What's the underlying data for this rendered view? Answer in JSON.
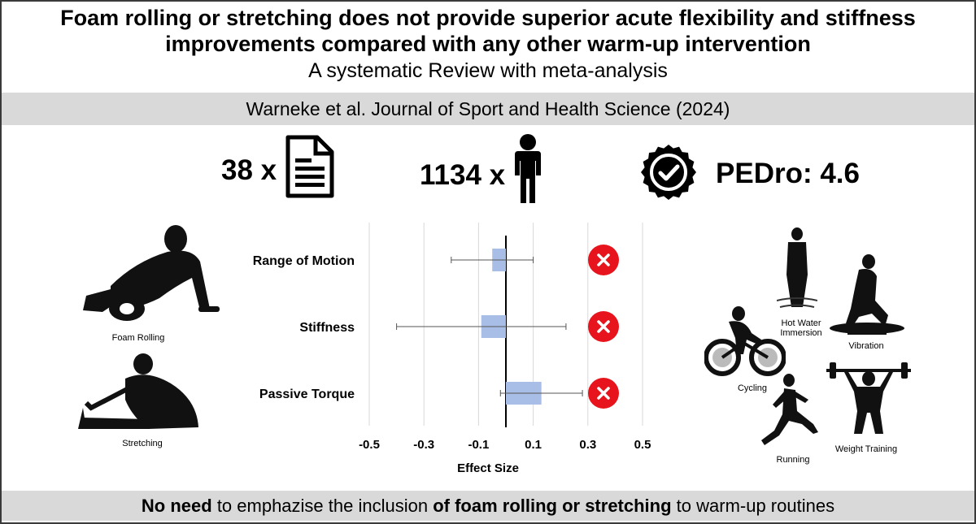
{
  "header": {
    "title_line1": "Foam rolling or stretching does not provide superior acute flexibility and stiffness",
    "title_line2": "improvements compared with any other warm-up intervention",
    "subtitle": "A systematic Review with meta-analysis"
  },
  "citation": "Warneke et al. Journal of Sport and Health Science (2024)",
  "stats": {
    "studies": "38 x",
    "participants": "1134 x",
    "pedro": "PEDro: 4.6"
  },
  "left_images": {
    "foam_rolling": "Foam Rolling",
    "stretching": "Stretching"
  },
  "right_images": {
    "hot_water": "Hot Water Immersion",
    "vibration": "Vibration",
    "cycling": "Cycling",
    "running": "Running",
    "weight_training": "Weight Training"
  },
  "chart_data": {
    "type": "bar",
    "orientation": "horizontal",
    "categories": [
      "Range of Motion",
      "Stiffness",
      "Passive Torque"
    ],
    "values": [
      -0.05,
      -0.09,
      0.13
    ],
    "ci_lower": [
      -0.2,
      -0.4,
      -0.02
    ],
    "ci_upper": [
      0.1,
      0.22,
      0.28
    ],
    "x_ticks": [
      "-0.5",
      "-0.3",
      "-0.1",
      "0.1",
      "0.3",
      "0.5"
    ],
    "xlim": [
      -0.5,
      0.5
    ],
    "xlabel": "Effect Size",
    "bar_color": "#a9bee6",
    "grid": true,
    "markers": [
      "not-significant-icon",
      "not-significant-icon",
      "not-significant-icon"
    ],
    "marker_color": "#e8141d"
  },
  "footer": {
    "part1": "No need",
    "part2": " to emphazise the inclusion ",
    "part3": "of foam rolling or stretching",
    "part4": " to warm-up routines"
  }
}
